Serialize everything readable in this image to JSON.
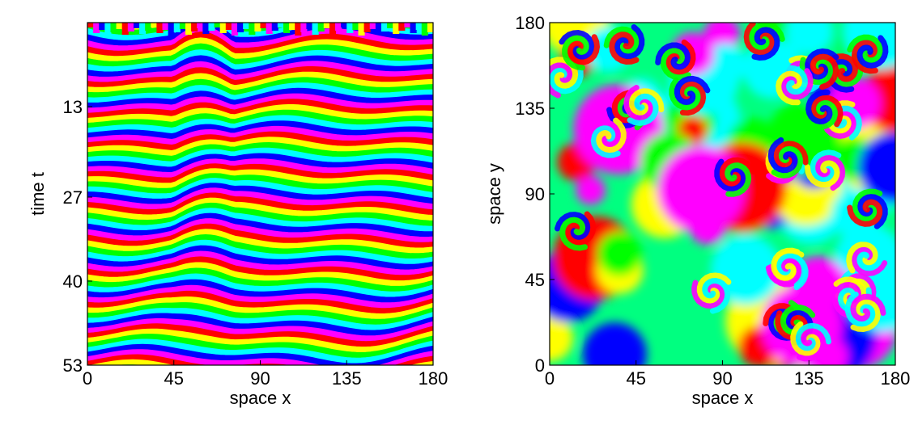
{
  "chart_data": [
    {
      "type": "heatmap",
      "title": "",
      "xlabel": "space x",
      "ylabel": "time t",
      "xlim": [
        0,
        180
      ],
      "ylim": [
        53,
        0
      ],
      "y_axis_inverted": true,
      "x_ticks": [
        "0",
        "45",
        "90",
        "135",
        "180"
      ],
      "y_ticks": [
        "13",
        "27",
        "40",
        "53"
      ],
      "colormap": "hsv (cyclic phase: red-yellow-green-cyan-blue-magenta)",
      "pattern": "space-time plot of phase; horizontal wavy stripes with defect near x=45-60, irregular near t=0",
      "grid": false
    },
    {
      "type": "heatmap",
      "title": "",
      "xlabel": "space x",
      "ylabel": "space y",
      "xlim": [
        0,
        180
      ],
      "ylim": [
        0,
        180
      ],
      "x_ticks": [
        "0",
        "45",
        "90",
        "135",
        "180"
      ],
      "y_ticks": [
        "0",
        "45",
        "90",
        "135",
        "180"
      ],
      "colormap": "hsv (cyclic phase: red-yellow-green-cyan-blue-magenta)",
      "pattern": "2D phase field with many spiral defects",
      "grid": false
    }
  ]
}
